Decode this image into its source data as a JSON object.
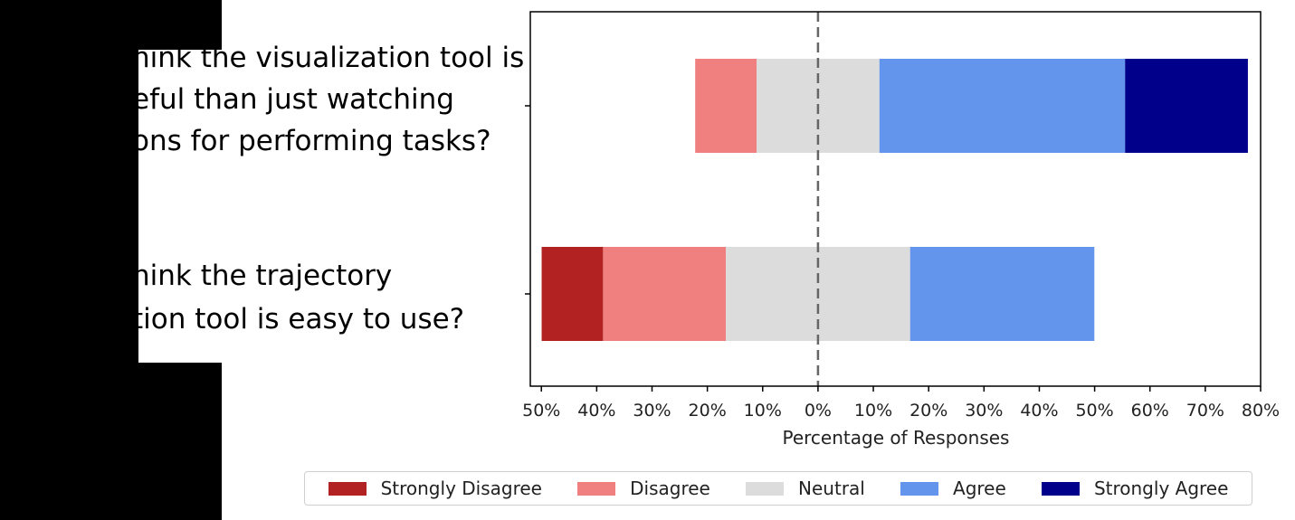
{
  "questions": [
    {
      "lines": [
        "hink the visualization tool is",
        "eful than just watching",
        "ons for performing tasks?"
      ]
    },
    {
      "lines": [
        "hink the trajectory",
        "tion tool is easy to use?"
      ]
    }
  ],
  "chart_data": {
    "type": "bar",
    "orientation": "horizontal-diverging",
    "title": "",
    "xlabel": "Percentage of Responses",
    "ylabel": "",
    "xlim": [
      -52,
      80
    ],
    "xticks": [
      -50,
      -40,
      -30,
      -20,
      -10,
      0,
      10,
      20,
      30,
      40,
      50,
      60,
      70,
      80
    ],
    "xtick_labels": [
      "50%",
      "40%",
      "30%",
      "20%",
      "10%",
      "0%",
      "10%",
      "20%",
      "30%",
      "40%",
      "50%",
      "60%",
      "70%",
      "80%"
    ],
    "grid": false,
    "center_line": "dashed at 0",
    "legend_position": "bottom",
    "categories": [
      "hink the visualization tool is eful than just watching ons for performing tasks?",
      "hink the trajectory tion tool is easy to use?"
    ],
    "series": [
      {
        "name": "Strongly Disagree",
        "color": "#b22222",
        "values": [
          0,
          11.1
        ]
      },
      {
        "name": "Disagree",
        "color": "#f08080",
        "values": [
          11.1,
          22.2
        ]
      },
      {
        "name": "Neutral",
        "color": "#dcdcdc",
        "values": [
          22.2,
          33.3
        ]
      },
      {
        "name": "Agree",
        "color": "#6495ed",
        "values": [
          44.4,
          33.3
        ]
      },
      {
        "name": "Strongly Agree",
        "color": "#00008b",
        "values": [
          22.2,
          0
        ]
      }
    ]
  }
}
